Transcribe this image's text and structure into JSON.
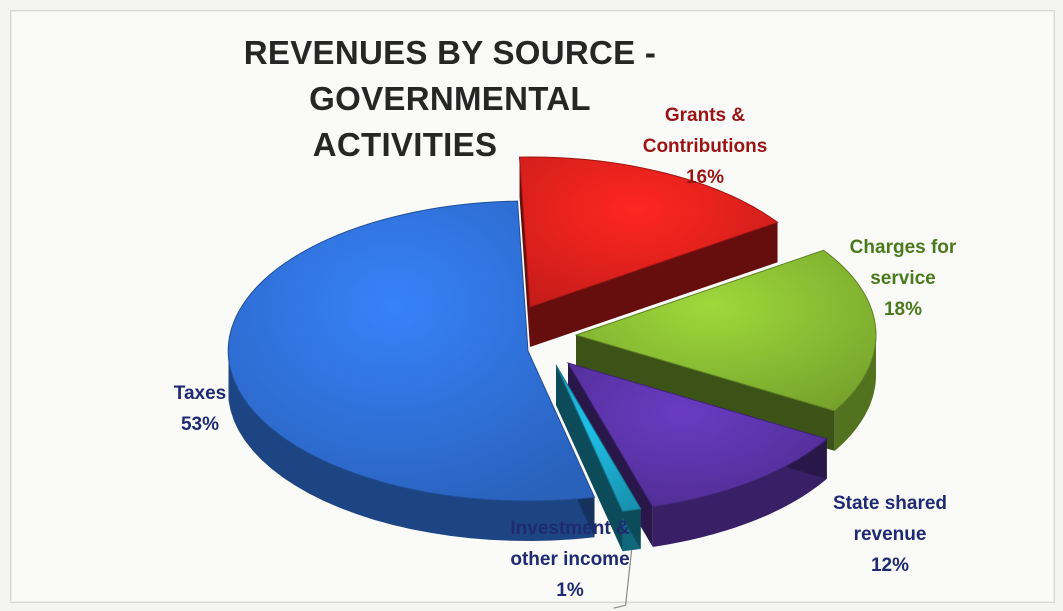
{
  "chart_data": {
    "type": "pie",
    "title": "REVENUES BY SOURCE - GOVERNMENTAL ACTIVITIES",
    "title_lines": [
      "REVENUES BY SOURCE - GOVERNMENTAL",
      "ACTIVITIES"
    ],
    "slices": [
      {
        "name": "Grants & Contributions",
        "value": 16,
        "label_lines": [
          "Grants &",
          "Contributions",
          "16%"
        ],
        "color": "#e0201c",
        "label_color": "#9b1414"
      },
      {
        "name": "Charges for service",
        "value": 18,
        "label_lines": [
          "Charges for",
          "service",
          "18%"
        ],
        "color": "#86b832",
        "label_color": "#4b7a1c"
      },
      {
        "name": "State shared revenue",
        "value": 12,
        "label_lines": [
          "State shared",
          "revenue",
          "12%"
        ],
        "color": "#5a32a4",
        "label_color": "#1f2a72"
      },
      {
        "name": "Investment & other income",
        "value": 1,
        "label_lines": [
          "Investment &",
          "other income",
          "1%"
        ],
        "color": "#1ba6c8",
        "label_color": "#1f2a72"
      },
      {
        "name": "Taxes",
        "value": 53,
        "label_lines": [
          "Taxes",
          "53%"
        ],
        "color": "#2f6ed4",
        "label_color": "#1f2a72"
      }
    ],
    "style": "3d-exploded",
    "legend": "none"
  }
}
